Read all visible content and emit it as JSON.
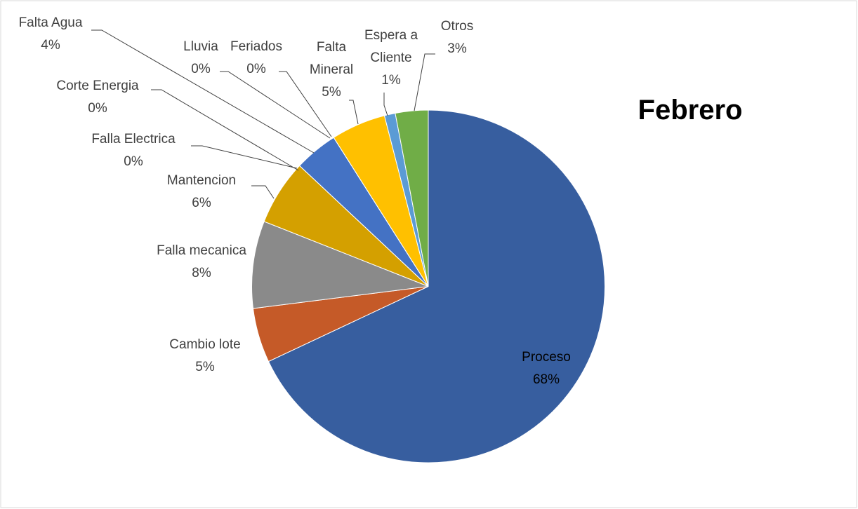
{
  "chart_data": {
    "type": "pie",
    "title": "Febrero",
    "categories": [
      "Proceso",
      "Cambio lote",
      "Falla mecanica",
      "Mantencion",
      "Falla Electrica",
      "Corte Energia",
      "Falta Agua",
      "Lluvia",
      "Feriados",
      "Falta Mineral",
      "Espera a Cliente",
      "Otros"
    ],
    "values": [
      68,
      5,
      8,
      6,
      0,
      0,
      4,
      0,
      0,
      5,
      1,
      3
    ],
    "value_labels": [
      "68%",
      "5%",
      "8%",
      "6%",
      "0%",
      "0%",
      "4%",
      "0%",
      "0%",
      "5%",
      "1%",
      "3%"
    ],
    "colors": [
      "#375e9f",
      "#c55a28",
      "#8a8a8a",
      "#d4a000",
      "#264478",
      "#9e480e",
      "#4472c4",
      "#636363",
      "#997300",
      "#ffc000",
      "#5b9bd5",
      "#70ad47"
    ]
  }
}
